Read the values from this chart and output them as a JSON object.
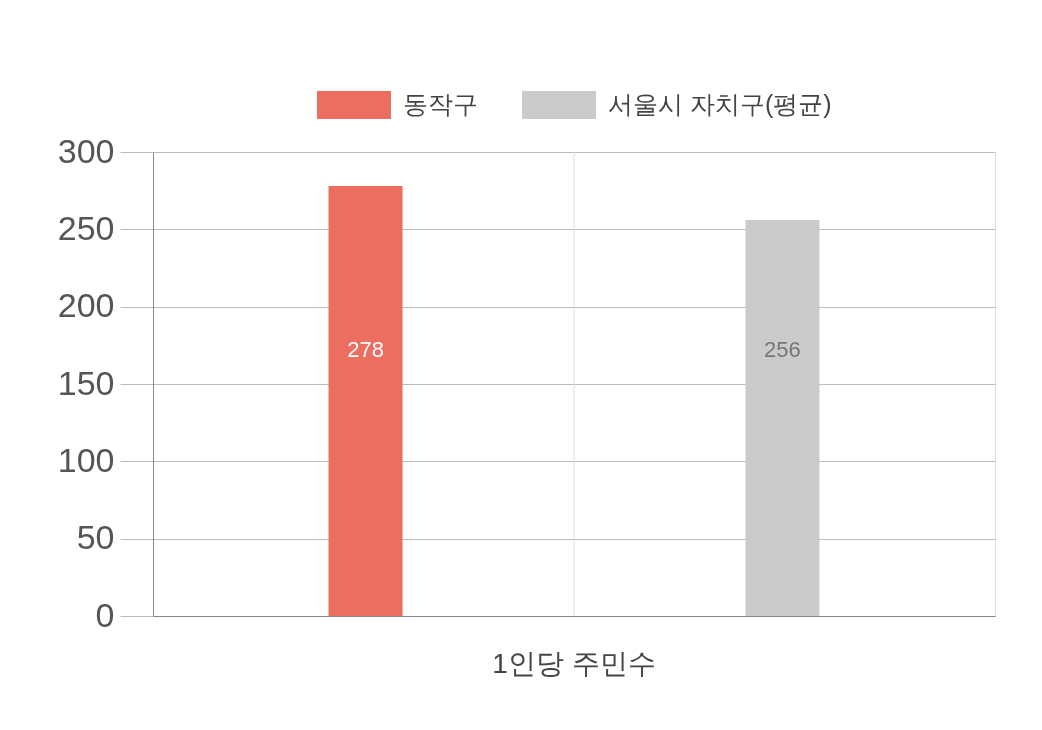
{
  "chart_data": {
    "type": "bar",
    "categories": [
      "1인당 주민수"
    ],
    "series": [
      {
        "name": "동작구",
        "color": "#ec6e60",
        "values": [
          278
        ]
      },
      {
        "name": "서울시 자치구(평균)",
        "color": "#cbcbcb",
        "values": [
          256
        ]
      }
    ],
    "ylim": [
      0,
      300
    ],
    "yticks": [
      0,
      50,
      100,
      150,
      200,
      250,
      300
    ],
    "ref_lines": [
      {
        "axis": "x",
        "value": "1인당 주민수",
        "color": "#dddddd"
      }
    ],
    "grid": "y",
    "legend": "top",
    "data_labels": true
  }
}
